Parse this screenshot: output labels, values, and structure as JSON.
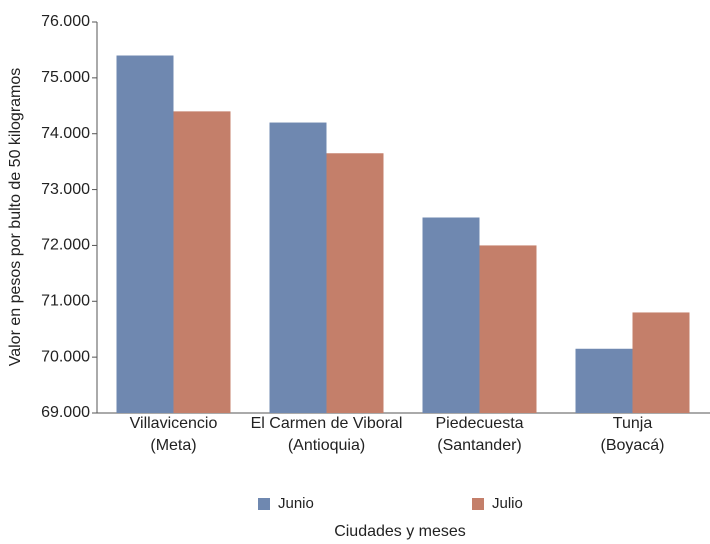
{
  "chart_data": {
    "type": "bar",
    "x_label": "Ciudades y meses",
    "y_label": "Valor en pesos por bulto de 50 kilogramos",
    "categories": [
      [
        "Villavicencio",
        "(Meta)"
      ],
      [
        "El Carmen de Viboral",
        "(Antioquia)"
      ],
      [
        "Piedecuesta",
        "(Santander)"
      ],
      [
        "Tunja",
        "(Boyacá)"
      ]
    ],
    "series": [
      {
        "name": "Junio",
        "color": "#6f88b0",
        "values": [
          75400,
          74200,
          72500,
          70150
        ]
      },
      {
        "name": "Julio",
        "color": "#c47f6a",
        "values": [
          74400,
          73650,
          72000,
          70800
        ]
      }
    ],
    "ylim": [
      69000,
      76000
    ],
    "yticks": [
      {
        "value": 69000,
        "label": "69.000"
      },
      {
        "value": 70000,
        "label": "70.000"
      },
      {
        "value": 71000,
        "label": "71.000"
      },
      {
        "value": 72000,
        "label": "72.000"
      },
      {
        "value": 73000,
        "label": "73.000"
      },
      {
        "value": 74000,
        "label": "74.000"
      },
      {
        "value": 75000,
        "label": "75.000"
      },
      {
        "value": 76000,
        "label": "76.000"
      }
    ],
    "legend": "bottom"
  }
}
